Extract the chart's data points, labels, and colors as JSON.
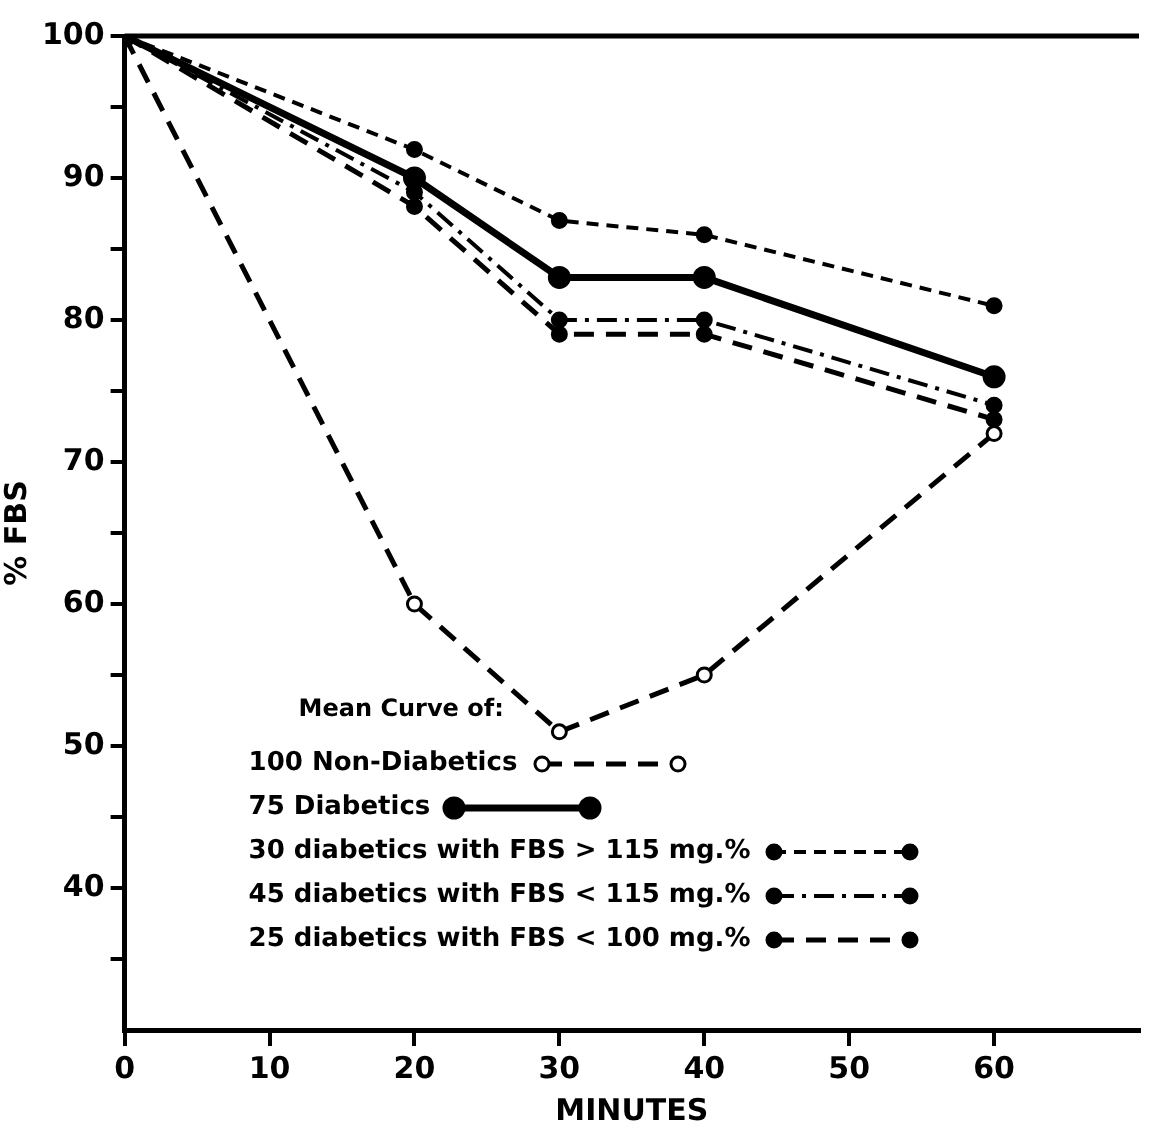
{
  "chart_data": {
    "type": "line",
    "xlabel": "MINUTES",
    "ylabel": "% FBS",
    "legend_title": "Mean Curve of:",
    "x": [
      0,
      20,
      30,
      40,
      60
    ],
    "xlim": [
      0,
      70
    ],
    "xticks": [
      0,
      10,
      20,
      30,
      40,
      50,
      60
    ],
    "ylim": [
      30,
      100
    ],
    "yticks": [
      {
        "value": 35,
        "label": null
      },
      40,
      {
        "value": 45,
        "label": null
      },
      50,
      {
        "value": 55,
        "label": null
      },
      60,
      {
        "value": 65,
        "label": null
      },
      70,
      {
        "value": 75,
        "label": null
      },
      80,
      {
        "value": 85,
        "label": null
      },
      90,
      {
        "value": 95,
        "label": null
      },
      100
    ],
    "grid": false,
    "legend": "bottom",
    "marker": "circle",
    "series": [
      {
        "name": "100 Non-Diabetics",
        "color": "#000000",
        "line_style": "dashed",
        "marker": "open_circle",
        "values": [
          100,
          60,
          51,
          55,
          72
        ]
      },
      {
        "name": "75 Diabetics",
        "color": "#000000",
        "line_style": "solid",
        "values": [
          100,
          90,
          83,
          83,
          76
        ]
      },
      {
        "name": "30 diabetics with FBS > 115 mg.%",
        "color": "#000000",
        "line_style": "dotted",
        "values": [
          100,
          92,
          87,
          86,
          81
        ]
      },
      {
        "name": "45 diabetics with FBS < 115 mg.%",
        "color": "#000000",
        "line_style": "dashdot",
        "values": [
          100,
          89,
          80,
          80,
          74
        ]
      },
      {
        "name": "25 diabetics with FBS < 100 mg.%",
        "color": "#000000",
        "line_style": "dashed",
        "values": [
          100,
          88,
          79,
          79,
          73
        ]
      }
    ]
  }
}
